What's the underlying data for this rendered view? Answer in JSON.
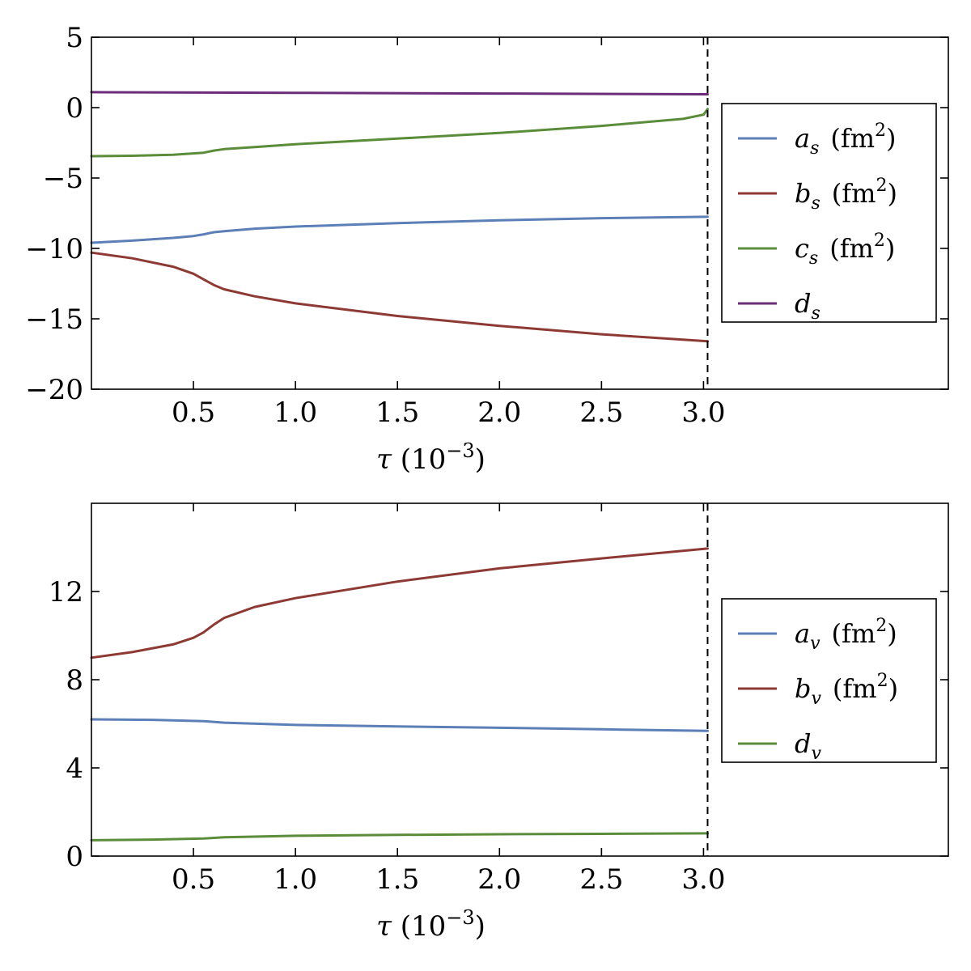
{
  "chart_data": [
    {
      "type": "line",
      "xlabel": "τ (10⁻³)",
      "xlabel_parts": {
        "symbol": "τ",
        "unit_open": "(10",
        "unit_exp": "−3",
        "unit_close": ")"
      },
      "xticks": [
        0.5,
        1.0,
        1.5,
        2.0,
        2.5,
        3.0
      ],
      "xtick_labels": [
        "0.5",
        "1.0",
        "1.5",
        "2.0",
        "2.5",
        "3.0"
      ],
      "xlim": [
        0.0,
        4.2
      ],
      "yticks": [
        5,
        0,
        -5,
        -10,
        -15,
        -20
      ],
      "ytick_labels": [
        "5",
        "0",
        "−5",
        "−10",
        "−15",
        "−20"
      ],
      "ylim": [
        -20,
        5
      ],
      "vline_x": 3.02,
      "vline_style": "dashed",
      "grid": false,
      "legend_position": "right",
      "series": [
        {
          "name": "a_s (fm²)",
          "label": {
            "sym": "a",
            "sub": "s",
            "unit": "(fm",
            "exp": "2",
            "close": ")"
          },
          "color": "#5b7fb6",
          "x": [
            0.0,
            0.2,
            0.4,
            0.5,
            0.55,
            0.6,
            0.65,
            0.8,
            1.0,
            1.5,
            2.0,
            2.5,
            3.02
          ],
          "y": [
            -9.6,
            -9.45,
            -9.25,
            -9.12,
            -9.0,
            -8.85,
            -8.78,
            -8.6,
            -8.45,
            -8.2,
            -8.0,
            -7.85,
            -7.75
          ]
        },
        {
          "name": "b_s (fm²)",
          "label": {
            "sym": "b",
            "sub": "s",
            "unit": "(fm",
            "exp": "2",
            "close": ")"
          },
          "color": "#8e3a34",
          "x": [
            0.0,
            0.2,
            0.4,
            0.5,
            0.55,
            0.6,
            0.65,
            0.8,
            1.0,
            1.5,
            2.0,
            2.5,
            3.02
          ],
          "y": [
            -10.3,
            -10.7,
            -11.3,
            -11.8,
            -12.2,
            -12.6,
            -12.9,
            -13.4,
            -13.9,
            -14.8,
            -15.5,
            -16.1,
            -16.6
          ]
        },
        {
          "name": "c_s (fm²)",
          "label": {
            "sym": "c",
            "sub": "s",
            "unit": "(fm",
            "exp": "2",
            "close": ")"
          },
          "color": "#5b8c3a",
          "x": [
            0.0,
            0.2,
            0.4,
            0.55,
            0.6,
            0.65,
            0.8,
            1.0,
            1.5,
            2.0,
            2.5,
            2.9,
            3.0,
            3.02
          ],
          "y": [
            -3.45,
            -3.42,
            -3.35,
            -3.2,
            -3.05,
            -2.95,
            -2.8,
            -2.6,
            -2.2,
            -1.8,
            -1.3,
            -0.8,
            -0.5,
            -0.1
          ]
        },
        {
          "name": "d_s",
          "label": {
            "sym": "d",
            "sub": "s",
            "unit": "",
            "exp": "",
            "close": ""
          },
          "color": "#6b2c7a",
          "x": [
            0.0,
            1.0,
            2.0,
            3.02
          ],
          "y": [
            1.1,
            1.05,
            1.0,
            0.95
          ]
        }
      ]
    },
    {
      "type": "line",
      "xlabel": "τ (10⁻³)",
      "xlabel_parts": {
        "symbol": "τ",
        "unit_open": "(10",
        "unit_exp": "−3",
        "unit_close": ")"
      },
      "xticks": [
        0.5,
        1.0,
        1.5,
        2.0,
        2.5,
        3.0
      ],
      "xtick_labels": [
        "0.5",
        "1.0",
        "1.5",
        "2.0",
        "2.5",
        "3.0"
      ],
      "xlim": [
        0.0,
        4.2
      ],
      "yticks": [
        0,
        4,
        8,
        12
      ],
      "ytick_labels": [
        "0",
        "4",
        "8",
        "12"
      ],
      "ylim": [
        0,
        16
      ],
      "vline_x": 3.02,
      "vline_style": "dashed",
      "grid": false,
      "legend_position": "right",
      "series": [
        {
          "name": "a_v (fm²)",
          "label": {
            "sym": "a",
            "sub": "v",
            "unit": "(fm",
            "exp": "2",
            "close": ")"
          },
          "color": "#5b7fb6",
          "x": [
            0.0,
            0.3,
            0.55,
            0.65,
            1.0,
            1.5,
            2.0,
            2.5,
            3.02
          ],
          "y": [
            6.2,
            6.18,
            6.12,
            6.05,
            5.95,
            5.88,
            5.82,
            5.75,
            5.68
          ]
        },
        {
          "name": "b_v (fm²)",
          "label": {
            "sym": "b",
            "sub": "v",
            "unit": "(fm",
            "exp": "2",
            "close": ")"
          },
          "color": "#8e3a34",
          "x": [
            0.0,
            0.2,
            0.4,
            0.5,
            0.55,
            0.6,
            0.65,
            0.8,
            1.0,
            1.5,
            2.0,
            2.5,
            3.02
          ],
          "y": [
            9.0,
            9.25,
            9.6,
            9.9,
            10.15,
            10.5,
            10.8,
            11.3,
            11.7,
            12.45,
            13.05,
            13.5,
            13.95
          ]
        },
        {
          "name": "d_v",
          "label": {
            "sym": "d",
            "sub": "v",
            "unit": "",
            "exp": "",
            "close": ""
          },
          "color": "#5b8c3a",
          "x": [
            0.0,
            0.3,
            0.55,
            0.65,
            1.0,
            1.5,
            2.0,
            2.5,
            3.02
          ],
          "y": [
            0.72,
            0.75,
            0.8,
            0.85,
            0.92,
            0.96,
            0.99,
            1.01,
            1.03
          ]
        }
      ]
    }
  ]
}
